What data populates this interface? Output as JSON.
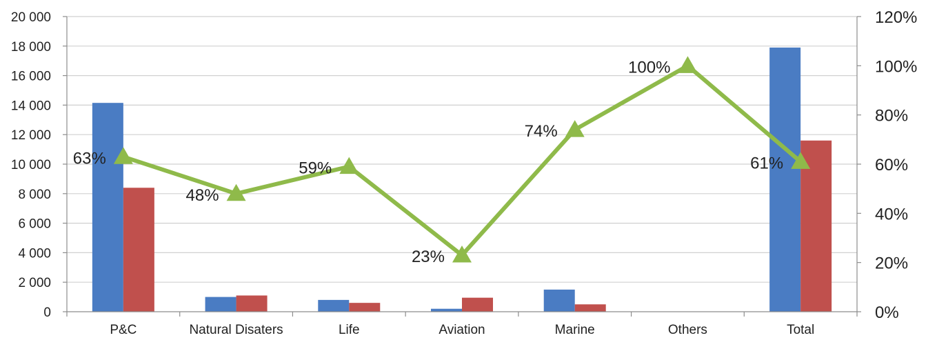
{
  "chart_data": {
    "type": "bar",
    "categories": [
      "P&C",
      "Natural Disaters",
      "Life",
      "Aviation",
      "Marine",
      "Others",
      "Total"
    ],
    "series": [
      {
        "type": "bar",
        "axis": "left",
        "color": "#4a7cc3",
        "values": [
          14150,
          1000,
          800,
          200,
          1500,
          0,
          17900
        ]
      },
      {
        "type": "bar",
        "axis": "left",
        "color": "#c0504d",
        "values": [
          8400,
          1100,
          600,
          950,
          500,
          0,
          11600
        ]
      },
      {
        "type": "line",
        "axis": "right",
        "color": "#8fba4a",
        "marker": "triangle",
        "values": [
          63,
          48,
          59,
          23,
          74,
          100,
          61
        ]
      }
    ],
    "data_labels": [
      "63%",
      "48%",
      "59%",
      "23%",
      "74%",
      "100%",
      "61%"
    ],
    "left_axis": {
      "ylim": [
        0,
        20000
      ],
      "ticks": [
        0,
        2000,
        4000,
        6000,
        8000,
        10000,
        12000,
        14000,
        16000,
        18000,
        20000
      ],
      "tick_labels": [
        "0",
        "2 000",
        "4 000",
        "6 000",
        "8 000",
        "10 000",
        "12 000",
        "14 000",
        "16 000",
        "18 000",
        "20 000"
      ]
    },
    "right_axis": {
      "ylim": [
        0,
        120
      ],
      "ticks": [
        0,
        20,
        40,
        60,
        80,
        100,
        120
      ],
      "tick_labels": [
        "0%",
        "20%",
        "40%",
        "60%",
        "80%",
        "100%",
        "120%"
      ]
    },
    "grid": true,
    "legend": "none",
    "title": "",
    "xlabel": "",
    "ylabel": ""
  }
}
